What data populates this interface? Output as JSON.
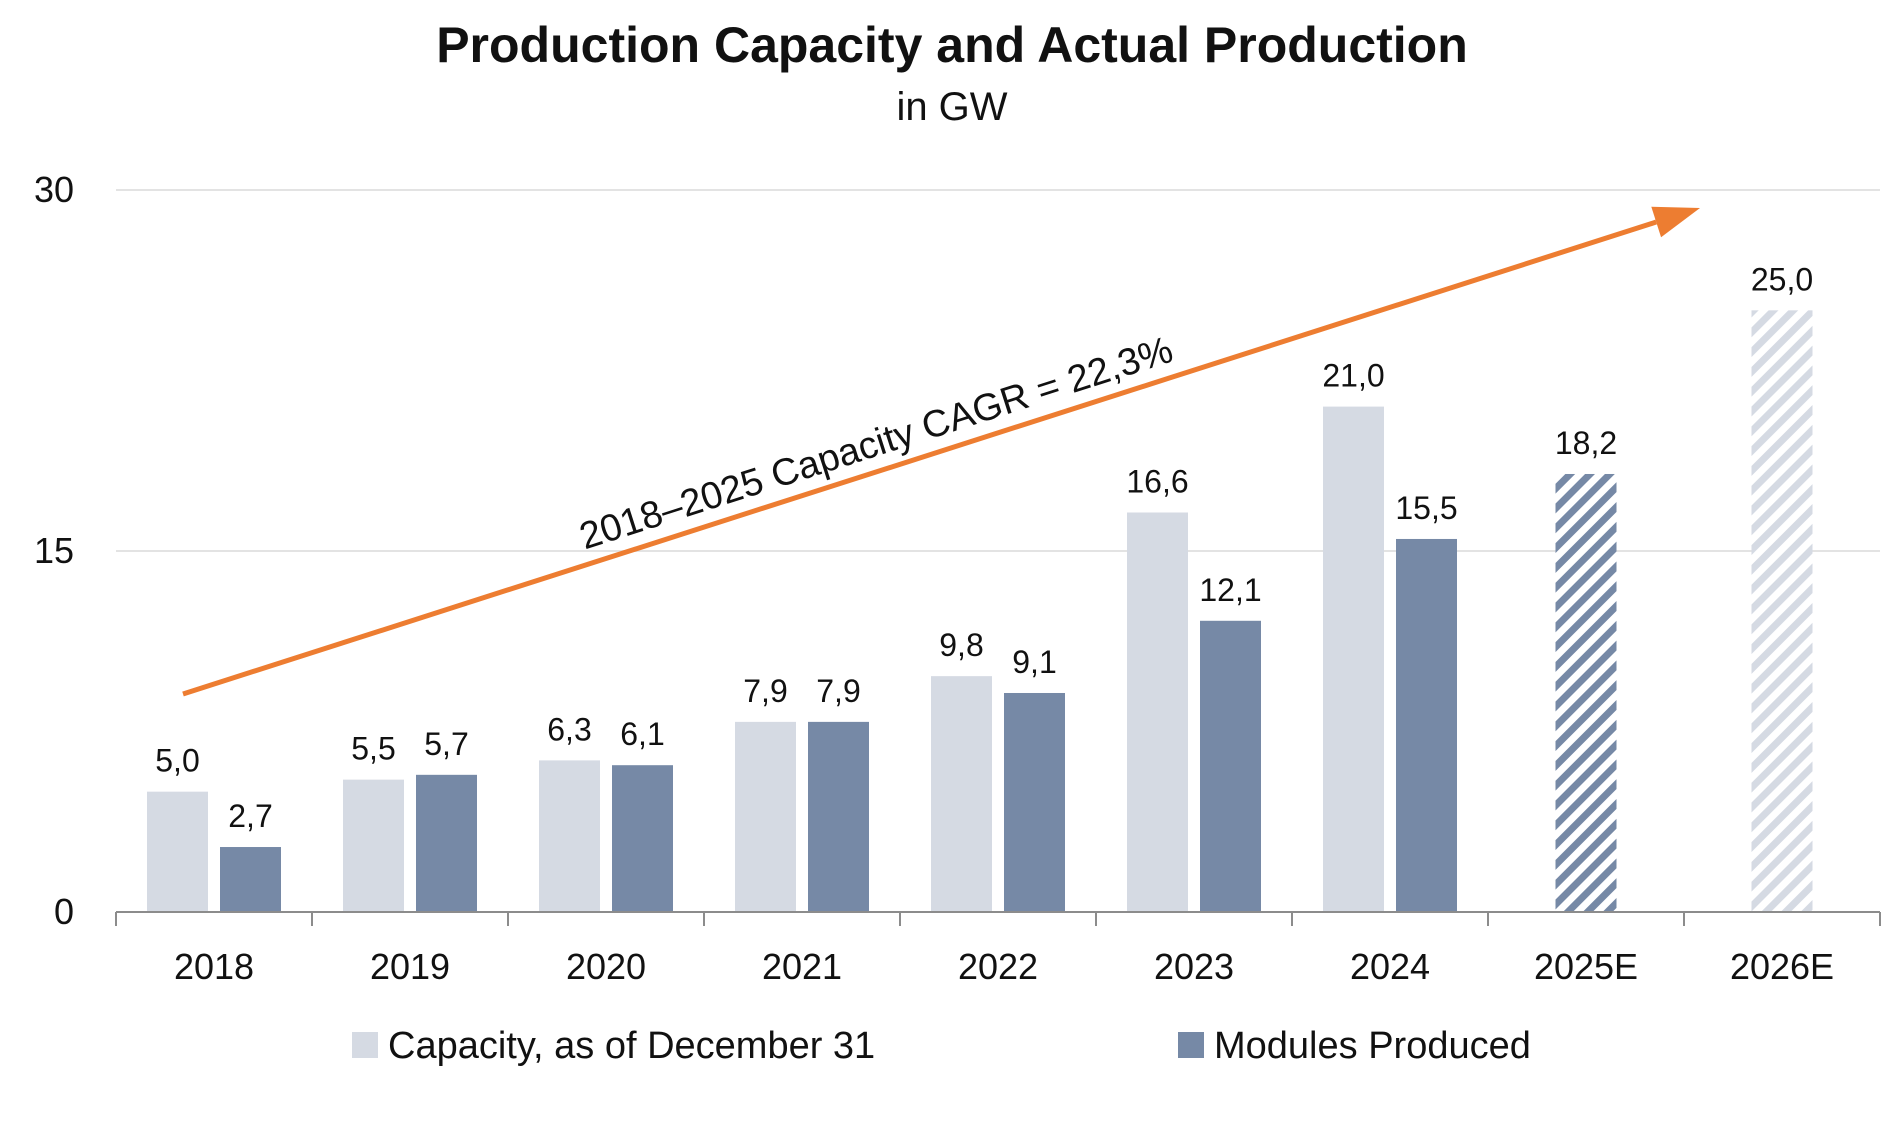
{
  "chart_data": {
    "type": "bar",
    "title": "Production Capacity and Actual Production",
    "subtitle": "in GW",
    "xlabel": "",
    "ylabel": "",
    "ylim": [
      0,
      30
    ],
    "yticks": [
      0,
      15,
      30
    ],
    "ytick_labels": [
      "0",
      "15",
      "30"
    ],
    "grid": true,
    "legend_position": "bottom",
    "categories": [
      "2018",
      "2019",
      "2020",
      "2021",
      "2022",
      "2023",
      "2024",
      "2025E",
      "2026E"
    ],
    "series": [
      {
        "name": "Capacity, as of December 31",
        "color": "#d5dae3",
        "values": [
          5.0,
          5.5,
          6.3,
          7.9,
          9.8,
          16.6,
          21.0,
          null,
          25.0
        ],
        "labels": [
          "5,0",
          "5,5",
          "6,3",
          "7,9",
          "9,8",
          "16,6",
          "21,0",
          null,
          "25,0"
        ],
        "estimate_hatched": [
          false,
          false,
          false,
          false,
          false,
          false,
          false,
          false,
          true
        ]
      },
      {
        "name": "Modules Produced",
        "color": "#7689a6",
        "values": [
          2.7,
          5.7,
          6.1,
          7.9,
          9.1,
          12.1,
          15.5,
          18.2,
          null
        ],
        "labels": [
          "2,7",
          "5,7",
          "6,1",
          "7,9",
          "9,1",
          "12,1",
          "15,5",
          "18,2",
          null
        ],
        "estimate_hatched": [
          false,
          false,
          false,
          false,
          false,
          false,
          false,
          true,
          false
        ]
      }
    ],
    "annotation": {
      "text": "2018–2025 Capacity CAGR = 22,3%",
      "arrow_color": "#ed7d31"
    }
  }
}
